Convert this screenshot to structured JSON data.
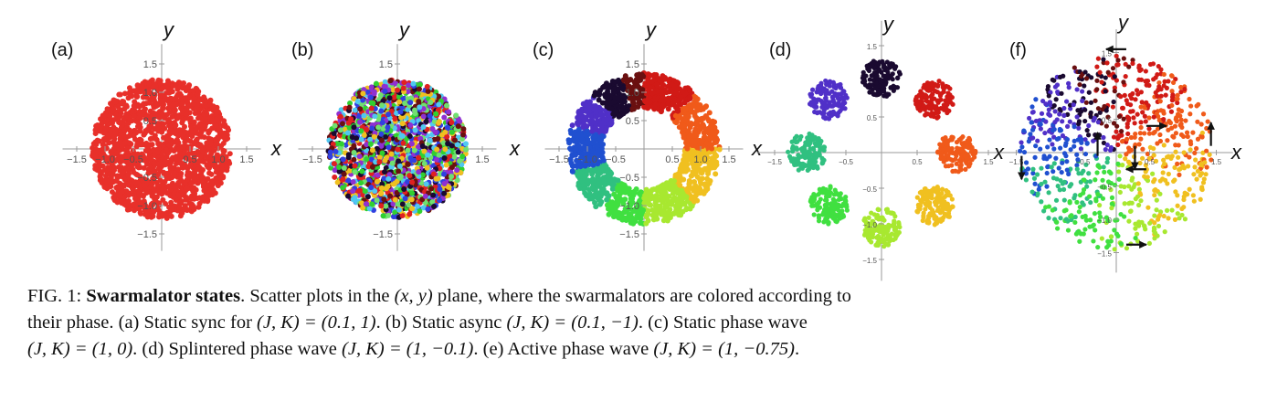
{
  "figure": {
    "panels": [
      {
        "label": "(a)",
        "state": "static-sync",
        "ticks_x": [
          "−1.5",
          "−1.0",
          "−0.5",
          "0.5",
          "1.0",
          "1.5"
        ],
        "ticks_y": [
          "1.5",
          "1.0",
          "0.5",
          "−0.5",
          "−1.0",
          "−1.5"
        ],
        "xlabel": "x",
        "ylabel": "y"
      },
      {
        "label": "(b)",
        "state": "static-async",
        "ticks_x": [
          "−1.5",
          "1.5"
        ],
        "ticks_y": [
          "1.5",
          "−1.5"
        ],
        "xlabel": "x",
        "ylabel": "y"
      },
      {
        "label": "(c)",
        "state": "static-phase-wave",
        "ticks_x": [
          "−1.5",
          "−1.0",
          "−0.5",
          "0.5",
          "1.0",
          "1.5"
        ],
        "ticks_y": [
          "1.5",
          "1.0",
          "0.5",
          "−0.5",
          "−1.0",
          "−1.5"
        ],
        "xlabel": "x",
        "ylabel": "y"
      },
      {
        "label": "(d)",
        "state": "splintered-phase-wave",
        "ticks_x": [
          "−1.5",
          "−0.5",
          "0.5",
          "1.5"
        ],
        "ticks_y": [
          "1.5",
          "0.5",
          "−0.5",
          "−1.0",
          "−1.5"
        ],
        "xlabel": "x",
        "ylabel": "y"
      },
      {
        "label": "(f)",
        "state": "active-phase-wave",
        "ticks_x": [
          "−1.5",
          "−0.5",
          "0.5",
          "1.5"
        ],
        "ticks_y": [
          "1.5",
          "0.5",
          "−0.5",
          "−1.0",
          "−1.5"
        ],
        "xlabel": "x",
        "ylabel": "y"
      }
    ],
    "colors": {
      "sync_red": "#e8302a",
      "axis_gray": "#9a9a9a"
    }
  },
  "caption": {
    "fig_no": "FIG. 1:",
    "title": "Swarmalator states",
    "l1_a": ". Scatter plots in the ",
    "l1_m1": "(x, y)",
    "l1_b": " plane, where the swarmalators are colored according to",
    "l2_a": "their phase. (a) Static sync for ",
    "l2_m1": "(J, K) = (0.1, 1)",
    "l2_b": ". (b) Static async ",
    "l2_m2": "(J, K) = (0.1, −1)",
    "l2_c": ". (c) Static phase wave",
    "l3_m1": "(J, K) = (1, 0)",
    "l3_a": ". (d) Splintered phase wave ",
    "l3_m2": "(J, K) = (1, −0.1)",
    "l3_b": ". (e) Active phase wave ",
    "l3_m3": "(J, K) = (1, −0.75)",
    "l3_c": "."
  }
}
